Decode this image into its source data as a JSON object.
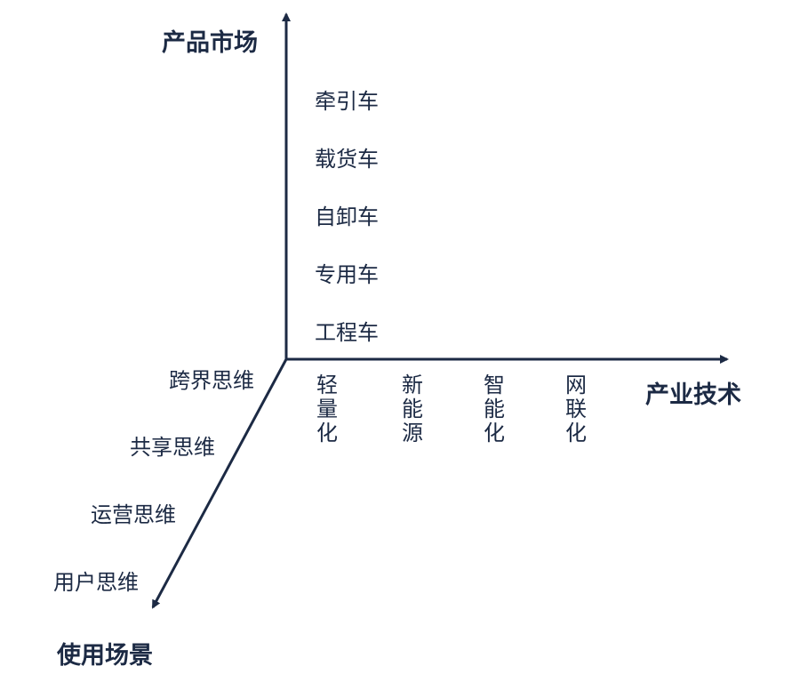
{
  "axes": {
    "y_title": "产品市场",
    "x_title": "产业技术",
    "z_title": "使用场景"
  },
  "y_items": [
    "牵引车",
    "载货车",
    "自卸车",
    "专用车",
    "工程车"
  ],
  "x_items": [
    "轻量化",
    "新能源",
    "智能化",
    "网联化"
  ],
  "z_items": [
    "跨界思维",
    "共享思维",
    "运营思维",
    "用户思维"
  ],
  "colors": {
    "text": "#1c2a44",
    "axis": "#1c2a44"
  }
}
